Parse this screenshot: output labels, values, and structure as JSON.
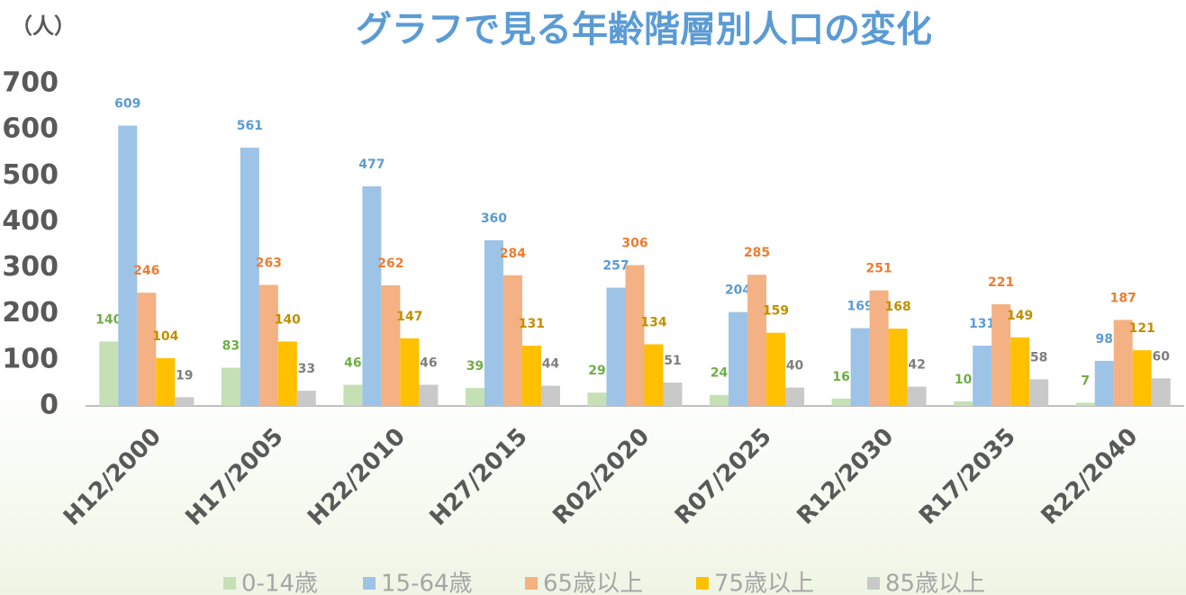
{
  "chart_data": {
    "type": "bar",
    "title": "グラフで見る年齢階層別人口の変化",
    "y_unit": "（人）",
    "categories": [
      "H12/2000",
      "H17/2005",
      "H22/2010",
      "H27/2015",
      "R02/2020",
      "R07/2025",
      "R12/2030",
      "R17/2035",
      "R22/2040"
    ],
    "series": [
      {
        "name": "0-14歳",
        "color": "#c5e0b4",
        "label_color": "#70ad47",
        "values": [
          140,
          83,
          46,
          39,
          29,
          24,
          16,
          10,
          7
        ]
      },
      {
        "name": "15-64歳",
        "color": "#9dc3e6",
        "label_color": "#5b9bd5",
        "values": [
          609,
          561,
          477,
          360,
          257,
          204,
          169,
          131,
          98
        ]
      },
      {
        "name": "65歳以上",
        "color": "#f4b183",
        "label_color": "#ed7d31",
        "values": [
          246,
          263,
          262,
          284,
          306,
          285,
          251,
          221,
          187
        ]
      },
      {
        "name": "75歳以上",
        "color": "#ffc000",
        "label_color": "#bf9000",
        "values": [
          104,
          140,
          147,
          131,
          134,
          159,
          168,
          149,
          121
        ]
      },
      {
        "name": "85歳以上",
        "color": "#c9c9c9",
        "label_color": "#7f7f7f",
        "values": [
          19,
          33,
          46,
          44,
          51,
          40,
          42,
          58,
          60
        ]
      }
    ],
    "ylim": [
      0,
      700
    ],
    "yticks": [
      0,
      100,
      200,
      300,
      400,
      500,
      600,
      700
    ],
    "grid": false,
    "legend": "bottom"
  }
}
